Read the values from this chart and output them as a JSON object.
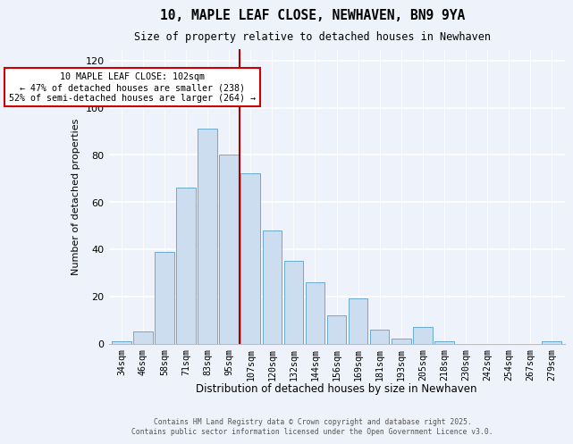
{
  "title": "10, MAPLE LEAF CLOSE, NEWHAVEN, BN9 9YA",
  "subtitle": "Size of property relative to detached houses in Newhaven",
  "xlabel": "Distribution of detached houses by size in Newhaven",
  "ylabel": "Number of detached properties",
  "bar_labels": [
    "34sqm",
    "46sqm",
    "58sqm",
    "71sqm",
    "83sqm",
    "95sqm",
    "107sqm",
    "120sqm",
    "132sqm",
    "144sqm",
    "156sqm",
    "169sqm",
    "181sqm",
    "193sqm",
    "205sqm",
    "218sqm",
    "230sqm",
    "242sqm",
    "254sqm",
    "267sqm",
    "279sqm"
  ],
  "bar_values": [
    1,
    5,
    39,
    66,
    91,
    80,
    72,
    48,
    35,
    26,
    12,
    19,
    6,
    2,
    7,
    1,
    0,
    0,
    0,
    0,
    1
  ],
  "bar_color": "#ccddf0",
  "bar_edgecolor": "#6aaad4",
  "vline_x": 5.5,
  "vline_color": "#aa0000",
  "annotation_title": "10 MAPLE LEAF CLOSE: 102sqm",
  "annotation_line1": "← 47% of detached houses are smaller (238)",
  "annotation_line2": "52% of semi-detached houses are larger (264) →",
  "annotation_box_facecolor": "#ffffff",
  "annotation_box_edgecolor": "#cc0000",
  "ylim": [
    0,
    125
  ],
  "yticks": [
    0,
    20,
    40,
    60,
    80,
    100,
    120
  ],
  "footer1": "Contains HM Land Registry data © Crown copyright and database right 2025.",
  "footer2": "Contains public sector information licensed under the Open Government Licence v3.0.",
  "background_color": "#eef2fa"
}
